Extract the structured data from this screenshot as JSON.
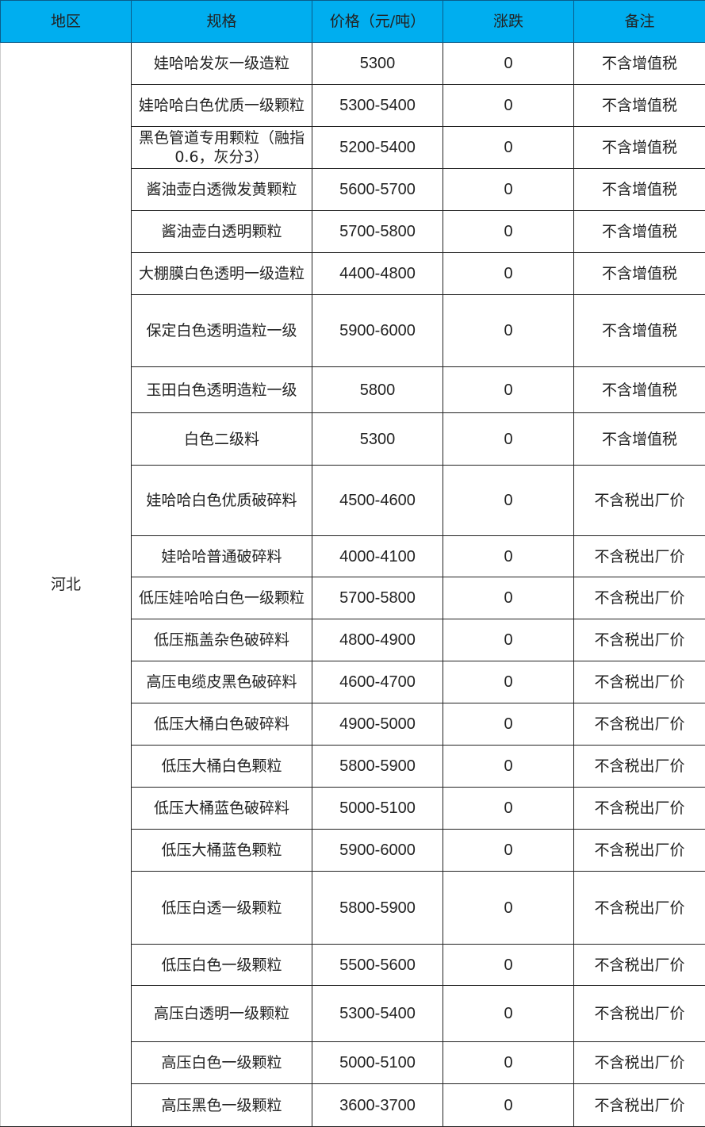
{
  "header_color": "#00AEEF",
  "columns": [
    "地区",
    "规格",
    "价格（元/吨）",
    "涨跌",
    "备注"
  ],
  "region": "河北",
  "rows": [
    {
      "spec": "娃哈哈发灰一级造粒",
      "price": "5300",
      "change": "0",
      "note": "不含增值税"
    },
    {
      "spec": "娃哈哈白色优质一级颗粒",
      "price": "5300-5400",
      "change": "0",
      "note": "不含增值税"
    },
    {
      "spec": "黑色管道专用颗粒（融指0.6，灰分3）",
      "price": "5200-5400",
      "change": "0",
      "note": "不含增值税"
    },
    {
      "spec": "酱油壶白透微发黄颗粒",
      "price": "5600-5700",
      "change": "0",
      "note": "不含增值税"
    },
    {
      "spec": "酱油壶白透明颗粒",
      "price": "5700-5800",
      "change": "0",
      "note": "不含增值税"
    },
    {
      "spec": "大棚膜白色透明一级造粒",
      "price": "4400-4800",
      "change": "0",
      "note": "不含增值税"
    },
    {
      "spec": "保定白色透明造粒一级",
      "price": "5900-6000",
      "change": "0",
      "note": "不含增值税"
    },
    {
      "spec": "玉田白色透明造粒一级",
      "price": "5800",
      "change": "0",
      "note": "不含增值税"
    },
    {
      "spec": "白色二级料",
      "price": "5300",
      "change": "0",
      "note": "不含增值税"
    },
    {
      "spec": "娃哈哈白色优质破碎料",
      "price": "4500-4600",
      "change": "0",
      "note": "不含税出厂价"
    },
    {
      "spec": "娃哈哈普通破碎料",
      "price": "4000-4100",
      "change": "0",
      "note": "不含税出厂价"
    },
    {
      "spec": "低压娃哈哈白色一级颗粒",
      "price": "5700-5800",
      "change": "0",
      "note": "不含税出厂价"
    },
    {
      "spec": "低压瓶盖杂色破碎料",
      "price": "4800-4900",
      "change": "0",
      "note": "不含税出厂价"
    },
    {
      "spec": "高压电缆皮黑色破碎料",
      "price": "4600-4700",
      "change": "0",
      "note": "不含税出厂价"
    },
    {
      "spec": "低压大桶白色破碎料",
      "price": "4900-5000",
      "change": "0",
      "note": "不含税出厂价"
    },
    {
      "spec": "低压大桶白色颗粒",
      "price": "5800-5900",
      "change": "0",
      "note": "不含税出厂价"
    },
    {
      "spec": "低压大桶蓝色破碎料",
      "price": "5000-5100",
      "change": "0",
      "note": "不含税出厂价"
    },
    {
      "spec": "低压大桶蓝色颗粒",
      "price": "5900-6000",
      "change": "0",
      "note": "不含税出厂价"
    },
    {
      "spec": "低压白透一级颗粒",
      "price": "5800-5900",
      "change": "0",
      "note": "不含税出厂价"
    },
    {
      "spec": "低压白色一级颗粒",
      "price": "5500-5600",
      "change": "0",
      "note": "不含税出厂价"
    },
    {
      "spec": "高压白透明一级颗粒",
      "price": "5300-5400",
      "change": "0",
      "note": "不含税出厂价"
    },
    {
      "spec": "高压白色一级颗粒",
      "price": "5000-5100",
      "change": "0",
      "note": "不含税出厂价"
    },
    {
      "spec": "高压黑色一级颗粒",
      "price": "3600-3700",
      "change": "0",
      "note": "不含税出厂价"
    }
  ]
}
